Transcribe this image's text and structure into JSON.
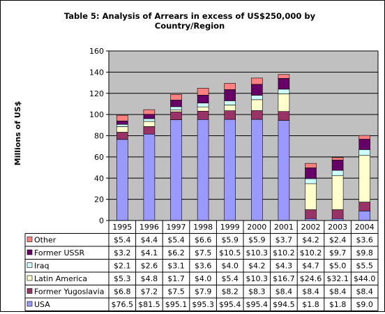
{
  "chart_data": {
    "type": "bar",
    "stacked": true,
    "title": "Table 5: Analysis of Arrears in excess of US$250,000 by Country/Region",
    "title_lines": [
      "Table 5: Analysis of Arrears in excess of US$250,000 by",
      "Country/Region"
    ],
    "ylabel": "Millions of US$",
    "ylim": [
      0,
      160
    ],
    "yticks": [
      0,
      20,
      40,
      60,
      80,
      100,
      120,
      140,
      160
    ],
    "grid": true,
    "legend_placement": "data-table-left",
    "categories": [
      "1995",
      "1996",
      "1997",
      "1998",
      "1999",
      "2000",
      "2001",
      "2002",
      "2003",
      "2004"
    ],
    "series": [
      {
        "name": "USA",
        "color": "#9999ff",
        "values": [
          76.5,
          81.5,
          95.1,
          95.3,
          95.4,
          95.4,
          94.5,
          1.8,
          1.8,
          9.0
        ],
        "labels": [
          "$76.5",
          "$81.5",
          "$95.1",
          "$95.3",
          "$95.4",
          "$95.4",
          "$94.5",
          "$1.8",
          "$1.8",
          "$9.0"
        ]
      },
      {
        "name": "Former Yugoslavia",
        "color": "#993366",
        "values": [
          6.8,
          7.2,
          7.5,
          7.9,
          8.2,
          8.3,
          8.4,
          8.4,
          8.4,
          8.4
        ],
        "labels": [
          "$6.8",
          "$7.2",
          "$7.5",
          "$7.9",
          "$8.2",
          "$8.3",
          "$8.4",
          "$8.4",
          "$8.4",
          "$8.4"
        ]
      },
      {
        "name": "Latin America",
        "color": "#ffffcc",
        "values": [
          5.3,
          4.8,
          1.7,
          4.0,
          5.4,
          10.3,
          16.7,
          24.6,
          32.1,
          44.0
        ],
        "labels": [
          "$5.3",
          "$4.8",
          "$1.7",
          "$4.0",
          "$5.4",
          "$10.3",
          "$16.7",
          "$24.6",
          "$32.1",
          "$44.0"
        ]
      },
      {
        "name": "Iraq",
        "color": "#ccffff",
        "values": [
          2.1,
          2.6,
          3.1,
          3.6,
          4.0,
          4.2,
          4.3,
          4.7,
          5.0,
          5.5
        ],
        "labels": [
          "$2.1",
          "$2.6",
          "$3.1",
          "$3.6",
          "$4.0",
          "$4.2",
          "$4.3",
          "$4.7",
          "$5.0",
          "$5.5"
        ]
      },
      {
        "name": "Former USSR",
        "color": "#660066",
        "values": [
          3.2,
          4.1,
          6.2,
          7.5,
          10.5,
          10.3,
          10.2,
          10.2,
          9.7,
          9.8
        ],
        "labels": [
          "$3.2",
          "$4.1",
          "$6.2",
          "$7.5",
          "$10.5",
          "$10.3",
          "$10.2",
          "$10.2",
          "$9.7",
          "$9.8"
        ]
      },
      {
        "name": "Other",
        "color": "#ff8080",
        "values": [
          5.4,
          4.4,
          5.4,
          6.6,
          5.9,
          5.9,
          3.7,
          4.2,
          2.4,
          3.6
        ],
        "labels": [
          "$5.4",
          "$4.4",
          "$5.4",
          "$6.6",
          "$5.9",
          "$5.9",
          "$3.7",
          "$4.2",
          "$2.4",
          "$3.6"
        ]
      }
    ]
  }
}
